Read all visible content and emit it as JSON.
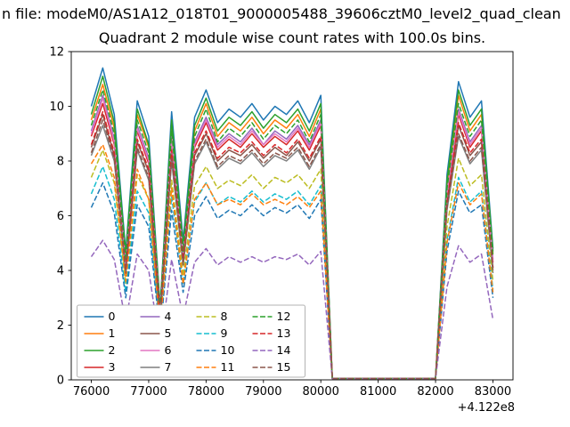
{
  "figure": {
    "suptitle": "n file: modeM0/AS1A12_018T01_9000005488_39606cztM0_level2_quad_clean",
    "axes_title": "Quadrant 2 module wise count rates with 100.0s bins.",
    "background": "#ffffff",
    "text_color": "#000000",
    "axes_edge_color": "#000000",
    "legend_edge_color": "#b3b3b3"
  },
  "chart_data": {
    "type": "line",
    "title": "Quadrant 2 module wise count rates with 100.0s bins.",
    "xlabel": "",
    "ylabel": "",
    "xlim": [
      75650,
      83350
    ],
    "ylim": [
      0,
      12
    ],
    "xticks": [
      76000,
      77000,
      78000,
      79000,
      80000,
      81000,
      82000,
      83000
    ],
    "yticks": [
      0,
      2,
      4,
      6,
      8,
      10,
      12
    ],
    "x_tick_offset": "+4.122e8",
    "grid": false,
    "legend_position": "lower left",
    "legend_columns": 4,
    "x": [
      76000,
      76200,
      76400,
      76600,
      76800,
      77000,
      77200,
      77400,
      77600,
      77800,
      78000,
      78200,
      78400,
      78600,
      78800,
      79000,
      79200,
      79400,
      79600,
      79800,
      80000,
      80200,
      80400,
      80600,
      80800,
      81000,
      81200,
      81400,
      81600,
      81800,
      82000,
      82200,
      82400,
      82600,
      82800,
      83000
    ],
    "series": [
      {
        "label": "0",
        "color": "#1f77b4",
        "dashed": false,
        "values": [
          10.0,
          11.4,
          9.7,
          4.7,
          10.2,
          8.9,
          2.7,
          9.8,
          5.1,
          9.6,
          10.6,
          9.4,
          9.9,
          9.6,
          10.1,
          9.5,
          10.0,
          9.7,
          10.2,
          9.4,
          10.4,
          0.05,
          0.05,
          0.05,
          0.05,
          0.05,
          0.05,
          0.05,
          0.05,
          0.05,
          0.05,
          7.5,
          10.9,
          9.6,
          10.2,
          4.8
        ]
      },
      {
        "label": "1",
        "color": "#ff7f0e",
        "dashed": false,
        "values": [
          9.5,
          10.8,
          9.2,
          4.5,
          9.7,
          8.5,
          2.6,
          9.3,
          4.8,
          9.1,
          10.1,
          8.9,
          9.4,
          9.1,
          9.6,
          9.0,
          9.5,
          9.2,
          9.7,
          8.9,
          9.9,
          0.05,
          0.05,
          0.05,
          0.05,
          0.05,
          0.05,
          0.05,
          0.05,
          0.05,
          0.05,
          7.1,
          10.4,
          9.1,
          9.7,
          4.6
        ]
      },
      {
        "label": "2",
        "color": "#2ca02c",
        "dashed": false,
        "values": [
          9.7,
          11.1,
          9.4,
          4.6,
          9.9,
          8.6,
          2.6,
          9.5,
          4.9,
          9.3,
          10.3,
          9.1,
          9.6,
          9.3,
          9.8,
          9.2,
          9.7,
          9.4,
          9.9,
          9.1,
          10.1,
          0.05,
          0.05,
          0.05,
          0.05,
          0.05,
          0.05,
          0.05,
          0.05,
          0.05,
          0.05,
          7.3,
          10.6,
          9.3,
          9.9,
          4.7
        ]
      },
      {
        "label": "3",
        "color": "#d62728",
        "dashed": false,
        "values": [
          8.9,
          10.1,
          8.6,
          4.2,
          9.1,
          7.9,
          2.4,
          8.7,
          4.5,
          8.5,
          9.4,
          8.4,
          8.8,
          8.5,
          9.0,
          8.5,
          8.9,
          8.6,
          9.1,
          8.4,
          9.3,
          0.05,
          0.05,
          0.05,
          0.05,
          0.05,
          0.05,
          0.05,
          0.05,
          0.05,
          0.05,
          6.7,
          9.7,
          8.5,
          9.1,
          4.3
        ]
      },
      {
        "label": "4",
        "color": "#9467bd",
        "dashed": false,
        "values": [
          9.1,
          10.4,
          8.8,
          4.3,
          9.3,
          8.1,
          2.5,
          8.9,
          4.6,
          8.7,
          9.6,
          8.6,
          9.0,
          8.7,
          9.2,
          8.6,
          9.1,
          8.8,
          9.3,
          8.6,
          9.5,
          0.05,
          0.05,
          0.05,
          0.05,
          0.05,
          0.05,
          0.05,
          0.05,
          0.05,
          0.05,
          6.8,
          9.9,
          8.7,
          9.3,
          4.4
        ]
      },
      {
        "label": "5",
        "color": "#8c564b",
        "dashed": false,
        "values": [
          8.5,
          9.7,
          8.2,
          4.0,
          8.7,
          7.6,
          2.3,
          8.3,
          4.3,
          8.2,
          9.0,
          8.0,
          8.4,
          8.2,
          8.6,
          8.1,
          8.5,
          8.2,
          8.7,
          8.0,
          8.8,
          0.05,
          0.05,
          0.05,
          0.05,
          0.05,
          0.05,
          0.05,
          0.05,
          0.05,
          0.05,
          6.4,
          9.3,
          8.2,
          8.7,
          4.1
        ]
      },
      {
        "label": "6",
        "color": "#e377c2",
        "dashed": false,
        "values": [
          9.0,
          10.3,
          8.7,
          4.2,
          9.2,
          8.0,
          2.4,
          8.8,
          4.6,
          8.6,
          9.5,
          8.5,
          8.9,
          8.6,
          9.1,
          8.6,
          9.0,
          8.7,
          9.2,
          8.5,
          9.4,
          0.05,
          0.05,
          0.05,
          0.05,
          0.05,
          0.05,
          0.05,
          0.05,
          0.05,
          0.05,
          6.8,
          9.8,
          8.6,
          9.2,
          4.3
        ]
      },
      {
        "label": "7",
        "color": "#7f7f7f",
        "dashed": false,
        "values": [
          8.2,
          9.3,
          8.0,
          3.9,
          8.4,
          7.3,
          2.2,
          8.0,
          4.2,
          7.9,
          8.7,
          7.7,
          8.1,
          7.9,
          8.3,
          7.8,
          8.2,
          8.0,
          8.4,
          7.7,
          8.5,
          0.05,
          0.05,
          0.05,
          0.05,
          0.05,
          0.05,
          0.05,
          0.05,
          0.05,
          0.05,
          6.2,
          8.9,
          7.9,
          8.4,
          3.9
        ]
      },
      {
        "label": "8",
        "color": "#bcbd22",
        "dashed": true,
        "values": [
          7.4,
          8.4,
          7.2,
          3.5,
          7.5,
          6.6,
          2.0,
          7.3,
          3.8,
          7.1,
          7.8,
          7.0,
          7.3,
          7.1,
          7.5,
          7.0,
          7.4,
          7.2,
          7.5,
          7.0,
          7.7,
          0.05,
          0.05,
          0.05,
          0.05,
          0.05,
          0.05,
          0.05,
          0.05,
          0.05,
          0.05,
          5.6,
          8.1,
          7.1,
          7.5,
          3.6
        ]
      },
      {
        "label": "9",
        "color": "#17becf",
        "dashed": true,
        "values": [
          6.8,
          7.8,
          6.6,
          3.2,
          6.9,
          6.1,
          1.8,
          6.7,
          3.5,
          6.5,
          7.2,
          6.4,
          6.7,
          6.5,
          6.9,
          6.5,
          6.8,
          6.6,
          6.9,
          6.4,
          7.1,
          0.05,
          0.05,
          0.05,
          0.05,
          0.05,
          0.05,
          0.05,
          0.05,
          0.05,
          0.05,
          5.1,
          7.4,
          6.5,
          6.9,
          3.3
        ]
      },
      {
        "label": "10",
        "color": "#1f77b4",
        "dashed": true,
        "values": [
          6.3,
          7.2,
          6.1,
          3.0,
          6.4,
          5.6,
          1.7,
          6.2,
          3.2,
          6.0,
          6.7,
          5.9,
          6.2,
          6.0,
          6.4,
          6.0,
          6.3,
          6.1,
          6.4,
          5.9,
          6.6,
          0.05,
          0.05,
          0.05,
          0.05,
          0.05,
          0.05,
          0.05,
          0.05,
          0.05,
          0.05,
          4.7,
          6.9,
          6.1,
          6.4,
          3.0
        ]
      },
      {
        "label": "11",
        "color": "#ff7f0e",
        "dashed": true,
        "values": [
          7.9,
          8.6,
          7.4,
          3.6,
          7.7,
          6.6,
          1.9,
          7.0,
          3.5,
          6.6,
          7.2,
          6.4,
          6.6,
          6.4,
          6.8,
          6.4,
          6.6,
          6.4,
          6.7,
          6.3,
          6.9,
          0.05,
          0.05,
          0.05,
          0.05,
          0.05,
          0.05,
          0.05,
          0.05,
          0.05,
          0.05,
          5.0,
          7.2,
          6.4,
          6.8,
          3.2
        ]
      },
      {
        "label": "12",
        "color": "#2ca02c",
        "dashed": true,
        "values": [
          9.3,
          10.6,
          9.0,
          4.4,
          9.5,
          8.3,
          2.5,
          9.1,
          4.7,
          8.9,
          9.9,
          8.7,
          9.2,
          8.9,
          9.4,
          8.8,
          9.3,
          9.0,
          9.5,
          8.7,
          9.7,
          0.05,
          0.05,
          0.05,
          0.05,
          0.05,
          0.05,
          0.05,
          0.05,
          0.05,
          0.05,
          7.0,
          10.1,
          8.9,
          9.5,
          4.5
        ]
      },
      {
        "label": "13",
        "color": "#d62728",
        "dashed": true,
        "values": [
          8.6,
          9.8,
          8.3,
          4.0,
          8.8,
          7.7,
          2.3,
          8.4,
          4.4,
          8.3,
          9.1,
          8.1,
          8.5,
          8.3,
          8.7,
          8.2,
          8.6,
          8.3,
          8.8,
          8.1,
          8.9,
          0.05,
          0.05,
          0.05,
          0.05,
          0.05,
          0.05,
          0.05,
          0.05,
          0.05,
          0.05,
          6.5,
          9.4,
          8.3,
          8.8,
          4.1
        ]
      },
      {
        "label": "14",
        "color": "#9467bd",
        "dashed": true,
        "values": [
          4.5,
          5.1,
          4.4,
          2.1,
          4.6,
          4.0,
          1.2,
          4.4,
          2.3,
          4.3,
          4.8,
          4.2,
          4.5,
          4.3,
          4.5,
          4.3,
          4.5,
          4.4,
          4.6,
          4.2,
          4.7,
          0.05,
          0.05,
          0.05,
          0.05,
          0.05,
          0.05,
          0.05,
          0.05,
          0.05,
          0.05,
          3.4,
          4.9,
          4.3,
          4.6,
          2.2
        ]
      },
      {
        "label": "15",
        "color": "#8c564b",
        "dashed": true,
        "values": [
          8.3,
          9.5,
          8.1,
          3.9,
          8.5,
          7.4,
          2.2,
          8.1,
          4.2,
          8.0,
          8.8,
          7.8,
          8.2,
          8.0,
          8.4,
          7.9,
          8.3,
          8.1,
          8.5,
          7.8,
          8.6,
          0.05,
          0.05,
          0.05,
          0.05,
          0.05,
          0.05,
          0.05,
          0.05,
          0.05,
          0.05,
          6.3,
          9.0,
          8.0,
          8.5,
          4.0
        ]
      }
    ]
  }
}
